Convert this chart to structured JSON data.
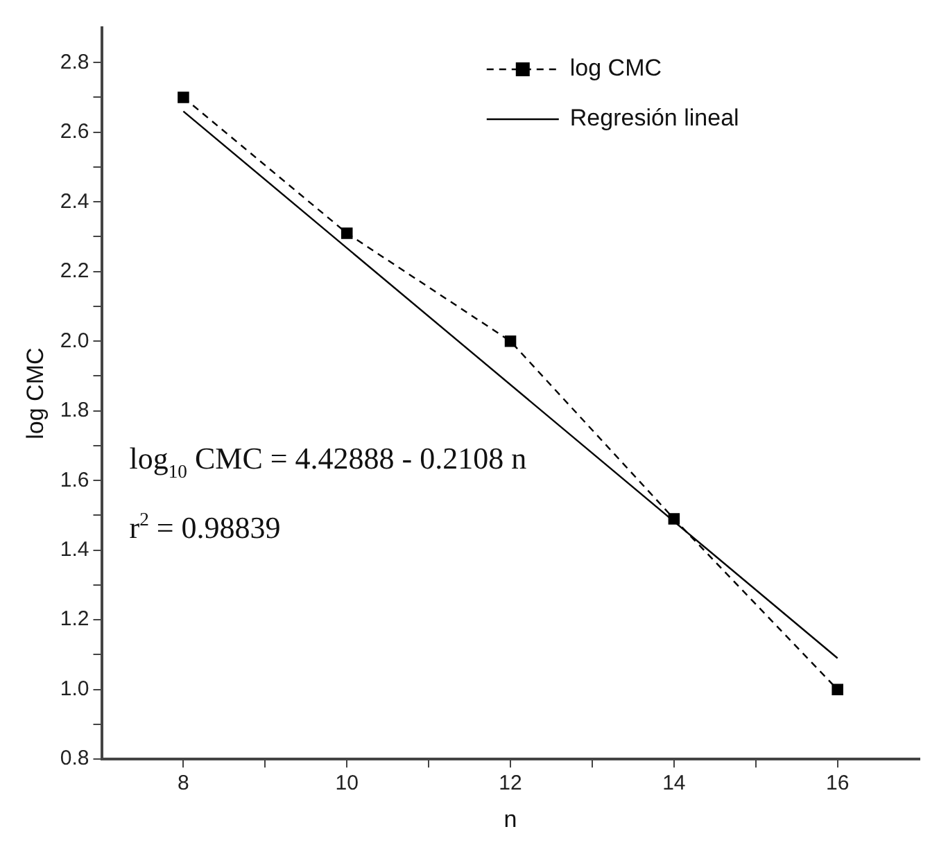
{
  "chart_data": {
    "type": "line",
    "xlabel": "n",
    "ylabel": "log CMC",
    "xlim": [
      7,
      17
    ],
    "xticks": [
      8,
      {
        "value": 9,
        "label": null
      },
      10,
      {
        "value": 11,
        "label": null
      },
      12,
      {
        "value": 13,
        "label": null
      },
      14,
      {
        "value": 15,
        "label": null
      },
      16
    ],
    "ylim": [
      0.8,
      2.9
    ],
    "yticks": [
      {
        "value": 0.8,
        "label": "0.8"
      },
      {
        "value": 0.9,
        "label": null
      },
      {
        "value": 1,
        "label": "1.0"
      },
      {
        "value": 1.1,
        "label": null
      },
      {
        "value": 1.2,
        "label": "1.2"
      },
      {
        "value": 1.3,
        "label": null
      },
      {
        "value": 1.4,
        "label": "1.4"
      },
      {
        "value": 1.5,
        "label": null
      },
      {
        "value": 1.6,
        "label": "1.6"
      },
      {
        "value": 1.7,
        "label": null
      },
      {
        "value": 1.8,
        "label": "1.8"
      },
      {
        "value": 1.9,
        "label": null
      },
      {
        "value": 2,
        "label": "2.0"
      },
      {
        "value": 2.1,
        "label": null
      },
      {
        "value": 2.2,
        "label": "2.2"
      },
      {
        "value": 2.3,
        "label": null
      },
      {
        "value": 2.4,
        "label": "2.4"
      },
      {
        "value": 2.5,
        "label": null
      },
      {
        "value": 2.6,
        "label": "2.6"
      },
      {
        "value": 2.7,
        "label": null
      },
      {
        "value": 2.8,
        "label": "2.8"
      }
    ],
    "series": [
      {
        "name": "log CMC",
        "color": "#000000",
        "x": [
          8,
          10,
          12,
          14,
          16
        ],
        "values": [
          2.7,
          2.31,
          2.0,
          1.49,
          1.0
        ],
        "marker": "square",
        "line_style": "dashed"
      },
      {
        "name": "Regresión lineal",
        "color": "#000000",
        "x": [
          8,
          16
        ],
        "values": [
          2.66,
          1.09
        ],
        "marker": "none",
        "line_style": "solid"
      }
    ],
    "annotations": [
      "log$_{10}$ CMC = 4.42888 - 0.2108 n",
      "r$^{2}$ = 0.98839"
    ],
    "legend": "top right",
    "grid": false
  }
}
